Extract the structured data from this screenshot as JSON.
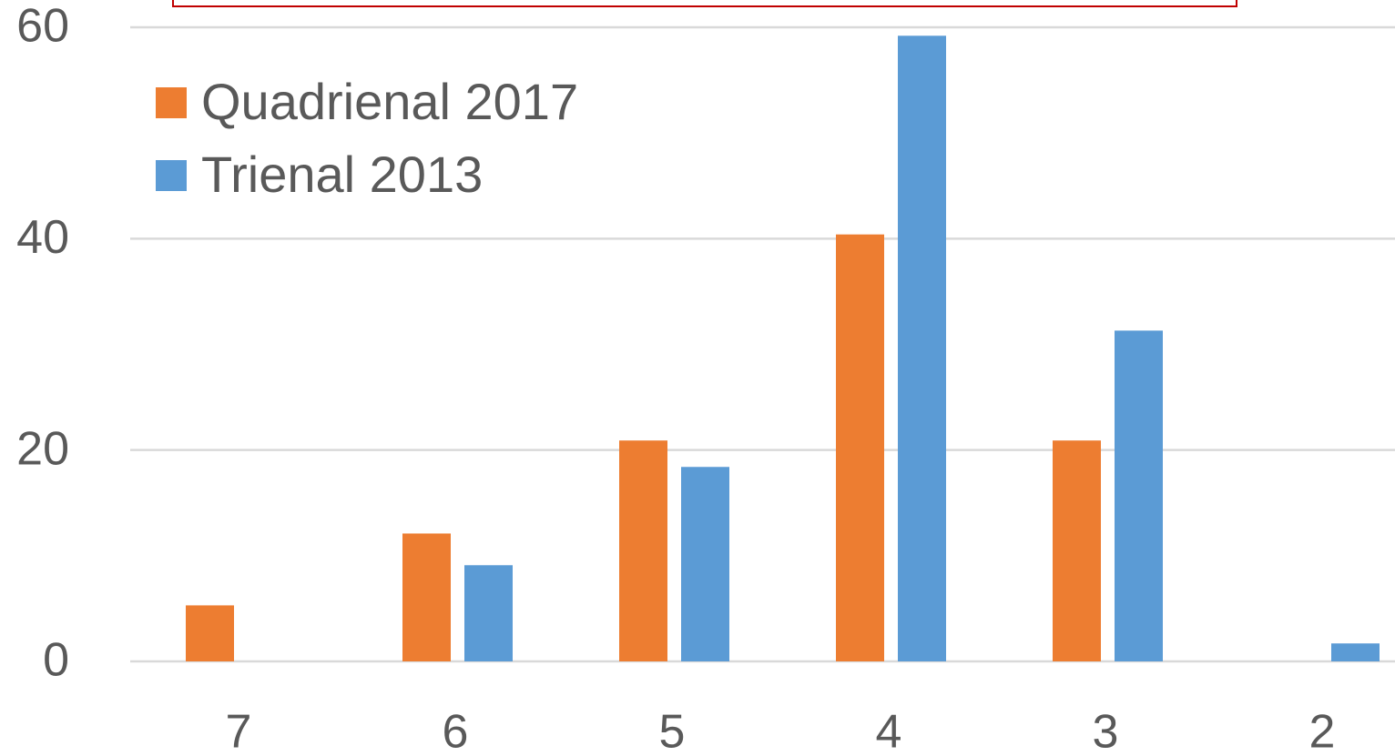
{
  "chart_data": {
    "type": "bar",
    "categories": [
      "7",
      "6",
      "5",
      "4",
      "3",
      "2"
    ],
    "series": [
      {
        "name": "Quadrienal 2017",
        "color": "#ed7d31",
        "values": [
          5.3,
          12.1,
          20.9,
          40.4,
          20.9,
          0
        ]
      },
      {
        "name": "Trienal 2013",
        "color": "#5b9bd5",
        "values": [
          0,
          9.1,
          18.4,
          59.2,
          31.3,
          1.7
        ]
      }
    ],
    "ylim": [
      0,
      60
    ],
    "yticks": [
      0,
      20,
      40,
      60
    ],
    "grid": true,
    "legend": "top-left"
  }
}
